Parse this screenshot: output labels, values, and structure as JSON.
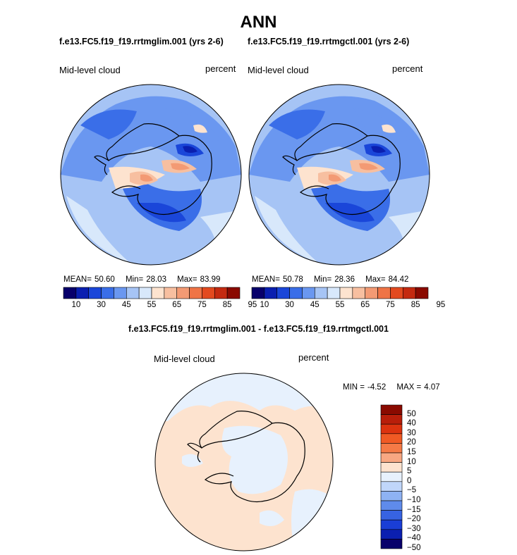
{
  "title": "ANN",
  "left_case": "f.e13.FC5.f19_f19.rrtmglim.001 (yrs 2-6)",
  "right_case": "f.e13.FC5.f19_f19.rrtmgctl.001 (yrs 2-6)",
  "diff_title": "f.e13.FC5.f19_f19.rrtmglim.001 - f.e13.FC5.f19_f19.rrtmgctl.001",
  "variable": "Mid-level cloud",
  "units": "percent",
  "left_stats": {
    "mean_label": "MEAN=",
    "mean": "50.60",
    "min_label": "Min=",
    "min": "28.03",
    "max_label": "Max=",
    "max": "83.99"
  },
  "right_stats": {
    "mean_label": "MEAN=",
    "mean": "50.78",
    "min_label": "Min=",
    "min": "28.36",
    "max_label": "Max=",
    "max": "84.42"
  },
  "diff_stats": {
    "min_label": "MIN =",
    "min": "-4.52",
    "max_label": "MAX =",
    "max": "4.07"
  },
  "abs_colorbar": {
    "colors": [
      "#08006b",
      "#0a1fb0",
      "#1a46d9",
      "#3a6ee8",
      "#6a97f0",
      "#a6c4f5",
      "#d8e8fb",
      "#fde3cf",
      "#f7bfa0",
      "#f39a74",
      "#ef7446",
      "#e34a1f",
      "#c42a10",
      "#8a0a00"
    ],
    "labels": [
      "10",
      "30",
      "45",
      "55",
      "65",
      "75",
      "85",
      "95"
    ]
  },
  "diff_colorbar": {
    "colors": [
      "#8a0a00",
      "#b81e0a",
      "#dc330f",
      "#f05a24",
      "#f57a46",
      "#f8a782",
      "#fde3cf",
      "#e7f1fd",
      "#c0d6fa",
      "#8eb2f3",
      "#5f8beb",
      "#3763e2",
      "#1a3ed6",
      "#0b1fb0",
      "#08006b"
    ],
    "labels": [
      "50",
      "40",
      "30",
      "20",
      "15",
      "10",
      "5",
      "0",
      "−5",
      "−10",
      "−15",
      "−20",
      "−30",
      "−40",
      "−50"
    ]
  }
}
